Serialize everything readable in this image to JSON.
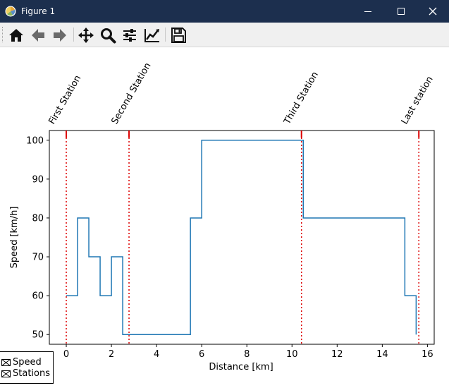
{
  "window": {
    "title": "Figure 1",
    "icons": [
      "matplotlib-icon",
      "minimize-icon",
      "maximize-icon",
      "close-icon"
    ]
  },
  "toolbar": {
    "buttons": [
      "home-icon",
      "back-icon",
      "forward-icon",
      "pan-icon",
      "zoom-icon",
      "subplots-icon",
      "edit-axis-icon",
      "save-icon"
    ]
  },
  "chart_data": {
    "type": "line",
    "title": "",
    "xlabel": "Distance [km]",
    "ylabel": "Speed [km/h]",
    "xlim": [
      -0.75,
      16.3
    ],
    "ylim": [
      47.5,
      102.5
    ],
    "xticks": [
      0,
      2,
      4,
      6,
      8,
      10,
      12,
      14,
      16
    ],
    "yticks": [
      50,
      60,
      70,
      80,
      90,
      100
    ],
    "grid": false,
    "series": [
      {
        "name": "Speed",
        "step": "post",
        "color": "#1f77b4",
        "x": [
          0.0,
          0.5,
          1.0,
          1.5,
          2.0,
          2.5,
          5.5,
          6.0,
          10.5,
          15.0,
          15.5,
          15.5
        ],
        "y": [
          60,
          80,
          70,
          60,
          70,
          50,
          80,
          100,
          80,
          60,
          50,
          50
        ]
      }
    ],
    "stations": {
      "name": "Stations",
      "color": "#dd0000",
      "positions": [
        0.0,
        2.78,
        10.42,
        15.62
      ],
      "labels": [
        "First Station",
        "Second Station",
        "Third Station",
        "Last station"
      ]
    },
    "legend": {
      "placement": "bottom-left",
      "entries": [
        "Speed",
        "Stations"
      ]
    }
  }
}
